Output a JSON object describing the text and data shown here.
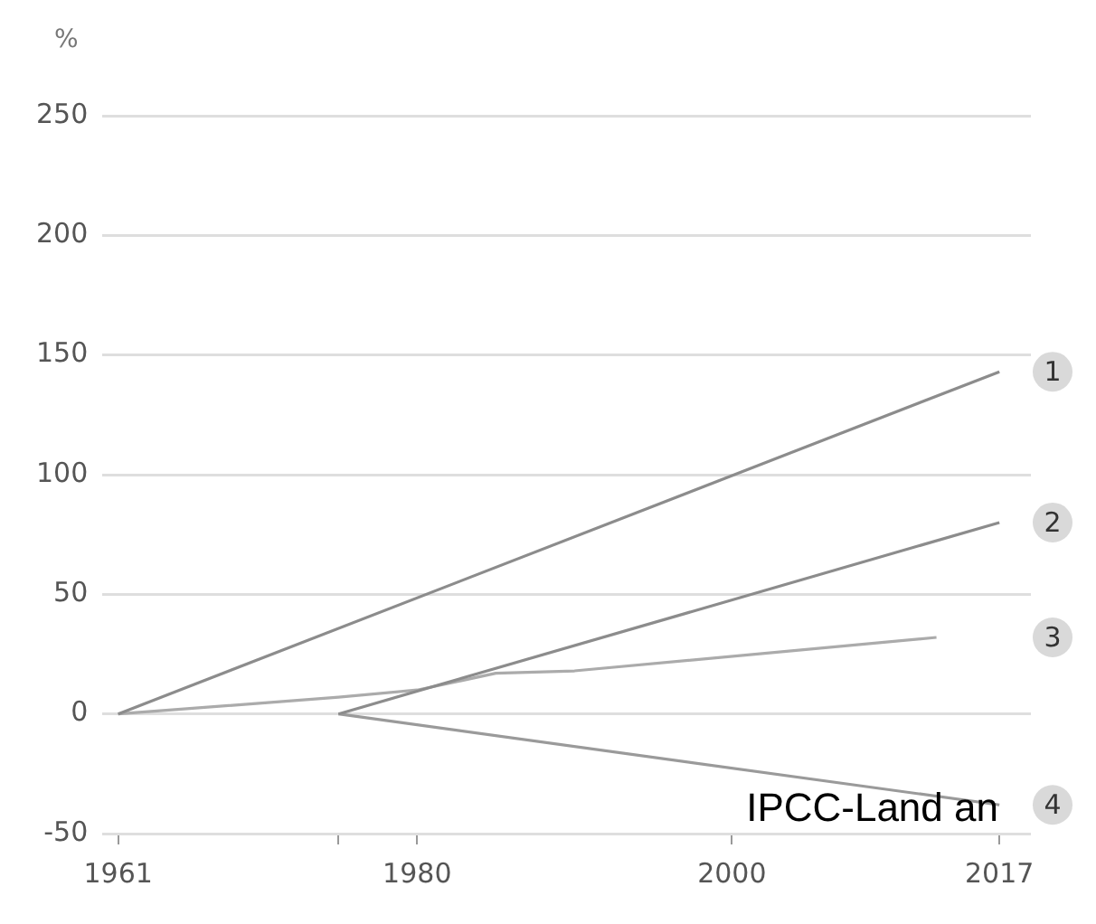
{
  "chart_data": {
    "type": "line",
    "ylabel": "%",
    "xlim": [
      1960,
      2019
    ],
    "xticks": [
      1961,
      {
        "value": 1975,
        "label": null
      },
      1980,
      2000,
      2017
    ],
    "ylim": [
      -50,
      250
    ],
    "yticks": [
      -50,
      0,
      50,
      100,
      150,
      200,
      250
    ],
    "grid": "y",
    "marker": "none",
    "line_style": "solid",
    "legend": false,
    "series": [
      {
        "name": "1",
        "color": "#8c8c8c",
        "x": [
          1961,
          2017
        ],
        "values": [
          0,
          143
        ]
      },
      {
        "name": "2",
        "color": "#8c8c8c",
        "x": [
          1975,
          2017
        ],
        "values": [
          0,
          80
        ]
      },
      {
        "name": "3",
        "color": "#ababab",
        "x": [
          1961,
          1975,
          1980,
          1985,
          1990,
          2013
        ],
        "values": [
          0,
          7,
          10,
          17,
          18,
          32
        ]
      },
      {
        "name": "4",
        "color": "#9a9a9a",
        "x": [
          1975,
          2017
        ],
        "values": [
          0,
          -38
        ]
      }
    ],
    "annotations": [
      "IPCC-Land an"
    ]
  }
}
